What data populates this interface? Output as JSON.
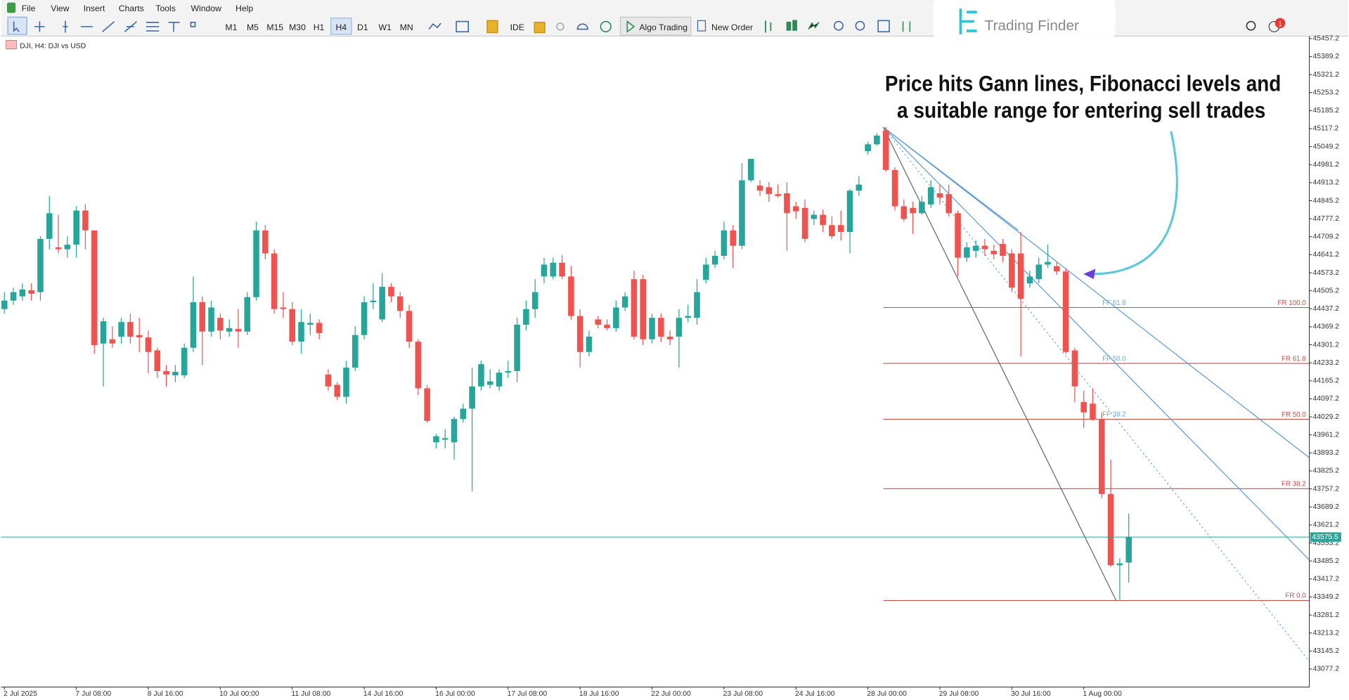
{
  "menu": [
    "File",
    "View",
    "Insert",
    "Charts",
    "Tools",
    "Window",
    "Help"
  ],
  "toolbar": {
    "timeframes": [
      "M1",
      "M5",
      "M15",
      "M30",
      "H1",
      "H4",
      "D1",
      "W1",
      "MN"
    ],
    "ide": "IDE",
    "algo_trading": "Algo Trading",
    "new_order": "New Order",
    "notifications": 1
  },
  "logo": "Trading Finder",
  "chart_data": {
    "type": "candlestick",
    "symbol": "DJI, H4: DJI vs USD",
    "annotation": [
      "Price hits Gann lines, Fibonacci levels and",
      "a suitable range for entering sell trades"
    ],
    "time_labels": [
      "2 Jul 2025",
      "7 Jul 08:00",
      "8 Jul 16:00",
      "10 Jul 00:00",
      "11 Jul 08:00",
      "14 Jul 16:00",
      "16 Jul 00:00",
      "17 Jul 08:00",
      "18 Jul 16:00",
      "22 Jul 00:00",
      "23 Jul 08:00",
      "24 Jul 16:00",
      "28 Jul 00:00",
      "29 Jul 08:00",
      "30 Jul 16:00",
      "1 Aug 00:00"
    ],
    "ylim": [
      43009,
      45473
    ],
    "yticks": [
      45457.2,
      45389.2,
      45321.2,
      45253.2,
      45185.2,
      45117.2,
      45049.2,
      44981.2,
      44913.2,
      44845.2,
      44777.2,
      44709.2,
      44641.2,
      44573.2,
      44505.2,
      44437.2,
      44369.2,
      44301.2,
      44233.2,
      44165.2,
      44097.2,
      44029.2,
      43961.2,
      43893.2,
      43825.2,
      43757.2,
      43689.2,
      43621.2,
      43553.2,
      43485.2,
      43417.2,
      43349.2,
      43281.2,
      43213.2,
      43145.2,
      43077.2
    ],
    "current_price": 43575.5,
    "up_color": "#26a69a",
    "down_color": "#ef5350",
    "fib_retracement": [
      {
        "label": "FR 100.0",
        "price": 44442
      },
      {
        "label": "FR 61.8",
        "price": 44231
      },
      {
        "label": "FR 50.0",
        "price": 44020
      },
      {
        "label": "FR 38.2",
        "price": 43758
      },
      {
        "label": "FR 0.0",
        "price": 43336
      }
    ],
    "fib_fan_labels": [
      "FF 61.8",
      "FF 50.0",
      "FF 38.2"
    ],
    "candles": [
      [
        44436,
        44500,
        44419,
        44468
      ],
      [
        44468,
        44517,
        44452,
        44500
      ],
      [
        44484,
        44533,
        44468,
        44510
      ],
      [
        44507,
        44533,
        44468,
        44494
      ],
      [
        44500,
        44711,
        44468,
        44701
      ],
      [
        44701,
        44863,
        44662,
        44798
      ],
      [
        44669,
        44792,
        44646,
        44662
      ],
      [
        44662,
        44711,
        44630,
        44679
      ],
      [
        44679,
        44824,
        44630,
        44808
      ],
      [
        44808,
        44831,
        44662,
        44733
      ],
      [
        44733,
        44733,
        44267,
        44300
      ],
      [
        44306,
        44403,
        44144,
        44390
      ],
      [
        44322,
        44371,
        44290,
        44306
      ],
      [
        44332,
        44403,
        44306,
        44387
      ],
      [
        44387,
        44419,
        44306,
        44332
      ],
      [
        44338,
        44403,
        44274,
        44329
      ],
      [
        44329,
        44355,
        44193,
        44274
      ],
      [
        44280,
        44290,
        44176,
        44202
      ],
      [
        44202,
        44225,
        44144,
        44189
      ],
      [
        44186,
        44225,
        44160,
        44199
      ],
      [
        44186,
        44306,
        44176,
        44290
      ],
      [
        44290,
        44559,
        44274,
        44462
      ],
      [
        44462,
        44484,
        44225,
        44351
      ],
      [
        44351,
        44468,
        44332,
        44442
      ],
      [
        44403,
        44419,
        44322,
        44355
      ],
      [
        44351,
        44397,
        44332,
        44364
      ],
      [
        44361,
        44436,
        44290,
        44351
      ],
      [
        44351,
        44500,
        44338,
        44481
      ],
      [
        44481,
        44766,
        44468,
        44733
      ],
      [
        44733,
        44753,
        44624,
        44646
      ],
      [
        44646,
        44662,
        44419,
        44436
      ],
      [
        44442,
        44500,
        44403,
        44436
      ],
      [
        44436,
        44462,
        44300,
        44313
      ],
      [
        44313,
        44436,
        44267,
        44387
      ],
      [
        44377,
        44419,
        44338,
        44384
      ],
      [
        44384,
        44397,
        44322,
        44345
      ],
      [
        44189,
        44209,
        44128,
        44144
      ],
      [
        44150,
        44160,
        44092,
        44105
      ],
      [
        44105,
        44241,
        44079,
        44215
      ],
      [
        44215,
        44371,
        44202,
        44338
      ],
      [
        44338,
        44484,
        44322,
        44462
      ],
      [
        44462,
        44533,
        44436,
        44468
      ],
      [
        44397,
        44572,
        44387,
        44520
      ],
      [
        44520,
        44533,
        44462,
        44484
      ],
      [
        44484,
        44500,
        44403,
        44429
      ],
      [
        44429,
        44452,
        44290,
        44313
      ],
      [
        44313,
        44322,
        44111,
        44137
      ],
      [
        44137,
        44150,
        44008,
        44014
      ],
      [
        43933,
        43965,
        43910,
        43956
      ],
      [
        43943,
        43982,
        43910,
        43949
      ],
      [
        43933,
        44030,
        43868,
        44021
      ],
      [
        44021,
        44079,
        44008,
        44060
      ],
      [
        44060,
        44215,
        43748,
        44144
      ],
      [
        44144,
        44241,
        44128,
        44228
      ],
      [
        44150,
        44209,
        44137,
        44163
      ],
      [
        44144,
        44209,
        44128,
        44196
      ],
      [
        44196,
        44241,
        44176,
        44202
      ],
      [
        44202,
        44403,
        44160,
        44377
      ],
      [
        44377,
        44468,
        44355,
        44436
      ],
      [
        44436,
        44549,
        44403,
        44500
      ],
      [
        44559,
        44630,
        44533,
        44604
      ],
      [
        44559,
        44630,
        44549,
        44611
      ],
      [
        44611,
        44640,
        44549,
        44559
      ],
      [
        44559,
        44598,
        44397,
        44410
      ],
      [
        44410,
        44436,
        44215,
        44274
      ],
      [
        44274,
        44355,
        44257,
        44332
      ],
      [
        44397,
        44410,
        44364,
        44377
      ],
      [
        44377,
        44397,
        44355,
        44364
      ],
      [
        44364,
        44468,
        44351,
        44442
      ],
      [
        44442,
        44500,
        44429,
        44484
      ],
      [
        44549,
        44581,
        44322,
        44332
      ],
      [
        44549,
        44565,
        44300,
        44322
      ],
      [
        44322,
        44419,
        44306,
        44403
      ],
      [
        44403,
        44419,
        44312,
        44332
      ],
      [
        44332,
        44355,
        44300,
        44322
      ],
      [
        44332,
        44436,
        44215,
        44403
      ],
      [
        44403,
        44452,
        44387,
        44410
      ],
      [
        44403,
        44549,
        44377,
        44500
      ],
      [
        44546,
        44630,
        44533,
        44604
      ],
      [
        44604,
        44656,
        44591,
        44637
      ],
      [
        44637,
        44766,
        44624,
        44733
      ],
      [
        44733,
        44753,
        44591,
        44675
      ],
      [
        44675,
        44987,
        44662,
        44922
      ],
      [
        44922,
        45003,
        44915,
        45003
      ],
      [
        44902,
        44922,
        44863,
        44883
      ],
      [
        44896,
        44915,
        44841,
        44870
      ],
      [
        44870,
        44906,
        44857,
        44863
      ],
      [
        44873,
        44915,
        44656,
        44798
      ],
      [
        44824,
        44841,
        44776,
        44805
      ],
      [
        44818,
        44850,
        44688,
        44701
      ],
      [
        44776,
        44808,
        44753,
        44792
      ],
      [
        44792,
        44811,
        44727,
        44753
      ],
      [
        44753,
        44785,
        44701,
        44711
      ],
      [
        44753,
        44808,
        44695,
        44727
      ],
      [
        44727,
        44889,
        44646,
        44883
      ],
      [
        44883,
        44938,
        44863,
        44906
      ],
      [
        45032,
        45068,
        45019,
        45058
      ],
      [
        45058,
        45100,
        45052,
        45091
      ],
      [
        45110,
        45123,
        44954,
        44961
      ],
      [
        44961,
        44971,
        44808,
        44824
      ],
      [
        44824,
        44850,
        44766,
        44776
      ],
      [
        44818,
        44841,
        44720,
        44798
      ],
      [
        44798,
        44863,
        44792,
        44841
      ],
      [
        44831,
        44922,
        44818,
        44896
      ],
      [
        44873,
        44906,
        44831,
        44857
      ],
      [
        44870,
        44906,
        44785,
        44798
      ],
      [
        44798,
        44808,
        44559,
        44630
      ],
      [
        44630,
        44688,
        44614,
        44669
      ],
      [
        44656,
        44695,
        44630,
        44675
      ],
      [
        44675,
        44701,
        44637,
        44662
      ],
      [
        44656,
        44679,
        44624,
        44643
      ],
      [
        44682,
        44701,
        44614,
        44637
      ],
      [
        44646,
        44662,
        44500,
        44517
      ],
      [
        44646,
        44727,
        44257,
        44475
      ],
      [
        44533,
        44581,
        44517,
        44559
      ],
      [
        44549,
        44630,
        44533,
        44604
      ],
      [
        44604,
        44679,
        44591,
        44614
      ],
      [
        44598,
        44614,
        44565,
        44578
      ],
      [
        44578,
        44591,
        44267,
        44274
      ],
      [
        44280,
        44290,
        44085,
        44144
      ],
      [
        44085,
        44128,
        43988,
        44046
      ],
      [
        44079,
        44137,
        44014,
        44021
      ],
      [
        44021,
        44046,
        43722,
        43738
      ],
      [
        43738,
        43868,
        43463,
        43469
      ],
      [
        43469,
        43495,
        43339,
        43476
      ],
      [
        43479,
        43664,
        43404,
        43576
      ]
    ]
  }
}
